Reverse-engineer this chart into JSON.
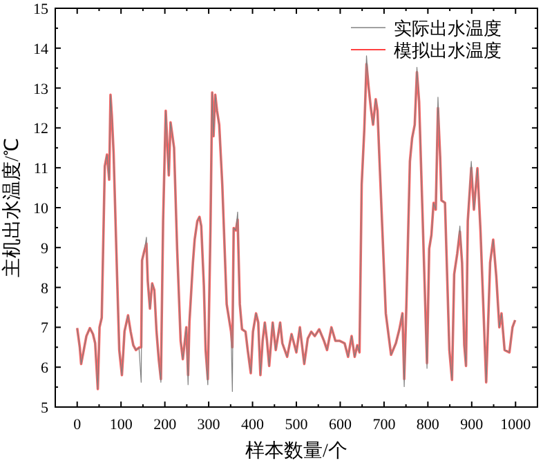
{
  "chart_data": {
    "type": "line",
    "xlabel": "样本数量/个",
    "ylabel": "主机出水温度/℃",
    "xlim": [
      -50,
      1050
    ],
    "ylim": [
      5,
      15
    ],
    "xticks": [
      0,
      100,
      200,
      300,
      400,
      500,
      600,
      700,
      800,
      900,
      1000
    ],
    "yticks": [
      5,
      6,
      7,
      8,
      9,
      10,
      11,
      12,
      13,
      14,
      15
    ],
    "legend": "top right",
    "grid": false,
    "marker": "none",
    "line_style": "solid",
    "x": [
      0,
      6,
      9,
      13,
      21,
      29,
      36,
      41,
      47,
      51,
      56,
      63,
      68,
      73,
      76,
      79,
      83,
      91,
      96,
      102,
      108,
      116,
      122,
      128,
      134,
      141,
      146,
      148,
      153,
      158,
      161,
      166,
      171,
      176,
      181,
      186,
      191,
      196,
      202,
      209,
      213,
      221,
      228,
      236,
      241,
      249,
      253,
      256,
      264,
      268,
      274,
      279,
      283,
      289,
      293,
      298,
      304,
      308,
      311,
      315,
      319,
      324,
      331,
      341,
      351,
      354,
      357,
      362,
      366,
      371,
      376,
      384,
      389,
      396,
      401,
      408,
      413,
      418,
      423,
      428,
      433,
      438,
      446,
      453,
      463,
      468,
      479,
      489,
      500,
      508,
      518,
      526,
      534,
      542,
      552,
      563,
      570,
      580,
      589,
      599,
      610,
      618,
      626,
      633,
      639,
      644,
      649,
      655,
      660,
      665,
      670,
      675,
      681,
      685,
      694,
      704,
      716,
      727,
      735,
      742,
      746,
      751,
      759,
      764,
      770,
      775,
      780,
      787,
      798,
      803,
      808,
      813,
      818,
      823,
      828,
      831,
      839,
      849,
      855,
      860,
      867,
      873,
      878,
      883,
      887,
      891,
      899,
      905,
      913,
      920,
      933,
      942,
      949,
      956,
      963,
      968,
      975,
      986,
      993,
      999
    ],
    "series": [
      {
        "name": "实际出水温度",
        "color": "#808080",
        "values": [
          6.98,
          6.49,
          6.08,
          6.31,
          6.78,
          6.98,
          6.83,
          6.6,
          5.45,
          7.0,
          7.24,
          11.04,
          11.33,
          10.7,
          12.83,
          12.31,
          11.39,
          8.28,
          6.43,
          5.8,
          6.9,
          7.3,
          6.89,
          6.55,
          6.43,
          6.49,
          5.62,
          8.68,
          8.91,
          9.26,
          8.16,
          7.47,
          8.1,
          7.93,
          6.89,
          6.2,
          5.62,
          9.66,
          12.43,
          10.81,
          12.14,
          11.5,
          8.97,
          6.66,
          6.2,
          7.0,
          5.56,
          7.12,
          8.62,
          9.2,
          9.66,
          9.77,
          9.54,
          8.04,
          6.43,
          5.56,
          9.43,
          12.89,
          11.79,
          12.83,
          12.43,
          12.08,
          10.58,
          7.58,
          6.89,
          5.39,
          9.49,
          9.43,
          9.89,
          7.58,
          6.95,
          6.89,
          6.43,
          5.85,
          6.89,
          7.35,
          7.12,
          5.8,
          6.66,
          7.12,
          6.66,
          6.03,
          7.12,
          6.43,
          7.12,
          6.6,
          6.26,
          6.83,
          6.37,
          7.0,
          6.08,
          6.72,
          6.89,
          6.78,
          6.95,
          6.66,
          6.43,
          7.0,
          6.66,
          6.66,
          6.6,
          6.26,
          6.78,
          6.26,
          6.55,
          6.37,
          10.58,
          11.97,
          13.81,
          13.0,
          12.49,
          12.08,
          12.72,
          12.43,
          10.01,
          7.35,
          6.31,
          6.6,
          6.95,
          7.35,
          5.51,
          7.58,
          11.16,
          11.74,
          12.08,
          13.52,
          12.66,
          10.12,
          5.97,
          8.97,
          9.31,
          10.12,
          9.95,
          12.77,
          11.27,
          10.18,
          10.12,
          6.43,
          5.68,
          8.33,
          8.85,
          9.54,
          8.62,
          6.55,
          6.03,
          9.66,
          11.16,
          9.95,
          10.99,
          9.43,
          5.62,
          8.62,
          9.2,
          8.28,
          7.0,
          7.35,
          6.43,
          6.37,
          7.0,
          7.18
        ]
      },
      {
        "name": "模拟出水温度",
        "color": "#ff0000",
        "values": [
          6.98,
          6.49,
          6.08,
          6.31,
          6.78,
          6.98,
          6.83,
          6.6,
          5.45,
          7.0,
          7.24,
          11.04,
          11.33,
          10.7,
          12.83,
          12.31,
          11.39,
          8.28,
          6.43,
          5.8,
          6.9,
          7.3,
          6.89,
          6.55,
          6.43,
          6.49,
          6.5,
          8.68,
          8.91,
          9.1,
          8.16,
          7.47,
          8.1,
          7.93,
          6.89,
          6.2,
          5.7,
          9.66,
          12.43,
          10.81,
          12.14,
          11.5,
          8.97,
          6.66,
          6.2,
          7.0,
          5.8,
          7.12,
          8.62,
          9.2,
          9.66,
          9.77,
          9.54,
          8.04,
          6.43,
          5.7,
          9.43,
          12.89,
          11.79,
          12.83,
          12.43,
          12.08,
          10.58,
          7.58,
          6.89,
          6.5,
          9.49,
          9.43,
          9.7,
          7.58,
          6.95,
          6.89,
          6.43,
          5.85,
          6.89,
          7.35,
          7.12,
          5.8,
          6.66,
          7.12,
          6.66,
          6.03,
          7.12,
          6.43,
          7.12,
          6.6,
          6.26,
          6.83,
          6.37,
          7.0,
          6.08,
          6.72,
          6.89,
          6.78,
          6.95,
          6.66,
          6.43,
          7.0,
          6.66,
          6.66,
          6.6,
          6.26,
          6.78,
          6.26,
          6.55,
          6.37,
          10.58,
          11.97,
          13.6,
          13.0,
          12.49,
          12.08,
          12.72,
          12.43,
          10.01,
          7.35,
          6.31,
          6.6,
          6.95,
          7.35,
          5.7,
          7.58,
          11.16,
          11.74,
          12.08,
          13.4,
          12.66,
          10.12,
          6.1,
          8.97,
          9.31,
          10.12,
          9.95,
          12.5,
          11.27,
          10.18,
          10.12,
          6.43,
          5.68,
          8.33,
          8.85,
          9.4,
          8.62,
          6.55,
          6.03,
          9.66,
          11.0,
          9.95,
          10.99,
          9.43,
          5.62,
          8.62,
          9.2,
          8.28,
          7.0,
          7.35,
          6.43,
          6.37,
          7.0,
          7.18
        ]
      }
    ]
  }
}
